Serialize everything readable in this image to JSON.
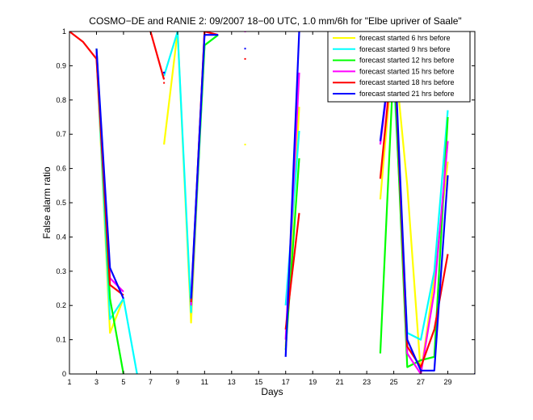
{
  "chart_data": {
    "type": "line",
    "title": "COSMO−DE and RANIE 2: 09/2007 18−00 UTC, 1.0 mm/6h for \"Elbe upriver of Saale\"",
    "xlabel": "Days",
    "ylabel": "False alarm ratio",
    "xlim": [
      1,
      31
    ],
    "ylim": [
      0,
      1
    ],
    "xticks": [
      "1",
      "3",
      "5",
      "7",
      "9",
      "11",
      "13",
      "15",
      "17",
      "19",
      "21",
      "23",
      "25",
      "27",
      "29"
    ],
    "xtick_values": [
      1,
      3,
      5,
      7,
      9,
      11,
      13,
      15,
      17,
      19,
      21,
      23,
      25,
      27,
      29
    ],
    "yticks": [
      "0",
      "0.1",
      "0.2",
      "0.3",
      "0.4",
      "0.5",
      "0.6",
      "0.7",
      "0.8",
      "0.9",
      "1"
    ],
    "ytick_values": [
      0,
      0.1,
      0.2,
      0.3,
      0.4,
      0.5,
      0.6,
      0.7,
      0.8,
      0.9,
      1
    ],
    "legend_position": "top-right",
    "grid": false,
    "series": [
      {
        "name": "forecast started 6 hrs before",
        "color": "#ffff00",
        "segments": [
          [
            [
              3,
              0.93
            ],
            [
              4,
              0.12
            ],
            [
              5,
              0.22
            ]
          ],
          [
            [
              8,
              0.67
            ],
            [
              9,
              1.0
            ],
            [
              10,
              0.15
            ],
            [
              11,
              1.0
            ]
          ],
          [
            [
              17,
              0.08
            ],
            [
              18,
              0.78
            ]
          ],
          [
            [
              24,
              0.51
            ],
            [
              25,
              0.96
            ],
            [
              26,
              0.55
            ],
            [
              27,
              0.0
            ],
            [
              28,
              0.28
            ],
            [
              29,
              0.62
            ]
          ]
        ],
        "points": [
          [
            14,
            0.67
          ]
        ]
      },
      {
        "name": "forecast started 9 hrs before",
        "color": "#00ffff",
        "segments": [
          [
            [
              3,
              0.93
            ],
            [
              4,
              0.16
            ],
            [
              5,
              0.22
            ],
            [
              6,
              0.0
            ]
          ],
          [
            [
              8,
              0.87
            ],
            [
              9,
              1.0
            ],
            [
              10,
              0.18
            ],
            [
              11,
              0.96
            ],
            [
              12,
              0.99
            ]
          ],
          [
            [
              17,
              0.2
            ],
            [
              18,
              0.71
            ]
          ],
          [
            [
              24,
              0.83
            ],
            [
              25,
              0.87
            ],
            [
              26,
              0.12
            ],
            [
              27,
              0.1
            ],
            [
              28,
              0.3
            ],
            [
              29,
              0.77
            ]
          ]
        ],
        "points": []
      },
      {
        "name": "forecast started 12 hrs before",
        "color": "#00ff00",
        "segments": [
          [
            [
              3,
              0.95
            ],
            [
              4,
              0.22
            ],
            [
              5,
              0.0
            ]
          ],
          [
            [
              10,
              0.2
            ],
            [
              11,
              0.96
            ],
            [
              12,
              0.99
            ]
          ],
          [
            [
              17,
              0.07
            ],
            [
              18,
              0.63
            ]
          ],
          [
            [
              24,
              0.06
            ],
            [
              25,
              0.92
            ],
            [
              26,
              0.02
            ],
            [
              27,
              0.04
            ],
            [
              28,
              0.05
            ],
            [
              29,
              0.75
            ]
          ]
        ],
        "points": []
      },
      {
        "name": "forecast started 15 hrs before",
        "color": "#ff00ff",
        "segments": [
          [
            [
              3,
              0.94
            ],
            [
              4,
              0.28
            ],
            [
              5,
              0.24
            ]
          ],
          [
            [
              10,
              0.2
            ],
            [
              11,
              1.0
            ],
            [
              12,
              0.99
            ]
          ],
          [
            [
              17,
              0.1
            ],
            [
              18,
              0.88
            ]
          ],
          [
            [
              24,
              0.67
            ],
            [
              25,
              0.98
            ],
            [
              26,
              0.06
            ],
            [
              27,
              0.0
            ],
            [
              28,
              0.24
            ],
            [
              29,
              0.68
            ]
          ]
        ],
        "points": [
          [
            14,
            1.0
          ]
        ]
      },
      {
        "name": "forecast started 18 hrs before",
        "color": "#ff0000",
        "segments": [
          [
            [
              1,
              1.0
            ],
            [
              2,
              0.97
            ],
            [
              3,
              0.92
            ],
            [
              4,
              0.26
            ],
            [
              5,
              0.23
            ]
          ],
          [
            [
              7,
              1.0
            ],
            [
              8,
              0.86
            ]
          ],
          [
            [
              10,
              0.21
            ],
            [
              11,
              1.0
            ],
            [
              12,
              0.99
            ]
          ],
          [
            [
              17,
              0.13
            ],
            [
              18,
              0.47
            ]
          ],
          [
            [
              24,
              0.57
            ],
            [
              25,
              0.97
            ],
            [
              26,
              0.08
            ],
            [
              27,
              0.02
            ],
            [
              28,
              0.13
            ],
            [
              29,
              0.35
            ]
          ]
        ],
        "points": [
          [
            8,
            0.85
          ],
          [
            14,
            0.92
          ]
        ]
      },
      {
        "name": "forecast started 21 hrs before",
        "color": "#0000ff",
        "segments": [
          [
            [
              3,
              0.95
            ],
            [
              4,
              0.31
            ],
            [
              5,
              0.22
            ]
          ],
          [
            [
              8,
              0.88
            ]
          ],
          [
            [
              10,
              0.22
            ],
            [
              11,
              0.99
            ],
            [
              12,
              0.99
            ]
          ],
          [
            [
              17,
              0.05
            ],
            [
              18,
              1.0
            ]
          ],
          [
            [
              24,
              0.68
            ],
            [
              25,
              1.0
            ],
            [
              26,
              0.1
            ],
            [
              27,
              0.01
            ],
            [
              28,
              0.01
            ],
            [
              29,
              0.58
            ]
          ]
        ],
        "points": [
          [
            8,
            0.88
          ],
          [
            14,
            0.95
          ],
          [
            31,
            0.0
          ]
        ]
      }
    ]
  }
}
